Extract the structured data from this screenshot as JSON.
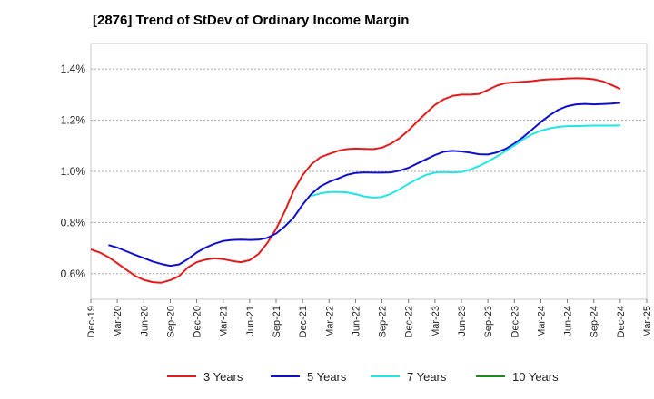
{
  "chart_data": {
    "type": "line",
    "title": "[2876]  Trend of StDev of Ordinary Income Margin",
    "xlabel": "",
    "ylabel": "",
    "ylim": [
      0.5,
      1.5
    ],
    "y_ticks": [
      0.6,
      0.8,
      1.0,
      1.2,
      1.4
    ],
    "y_tick_labels": [
      "0.6%",
      "0.8%",
      "1.0%",
      "1.2%",
      "1.4%"
    ],
    "grid": "horizontal dashed",
    "legend_position": "bottom",
    "x_tick_labels": [
      "Dec-19",
      "Mar-20",
      "Jun-20",
      "Sep-20",
      "Dec-20",
      "Mar-21",
      "Jun-21",
      "Sep-21",
      "Dec-21",
      "Mar-22",
      "Jun-22",
      "Sep-22",
      "Dec-22",
      "Mar-23",
      "Jun-23",
      "Sep-23",
      "Dec-23",
      "Mar-24",
      "Jun-24",
      "Sep-24",
      "Dec-24",
      "Mar-25"
    ],
    "series": [
      {
        "name": "3 Years",
        "color": "#e31a1c",
        "values": [
          0.695,
          0.683,
          0.665,
          0.641,
          0.616,
          0.592,
          0.576,
          0.567,
          0.565,
          0.575,
          0.59,
          0.625,
          0.645,
          0.655,
          0.66,
          0.657,
          0.65,
          0.645,
          0.653,
          0.677,
          0.72,
          0.775,
          0.845,
          0.925,
          0.985,
          1.028,
          1.055,
          1.068,
          1.08,
          1.087,
          1.089,
          1.088,
          1.087,
          1.093,
          1.108,
          1.13,
          1.16,
          1.195,
          1.228,
          1.26,
          1.282,
          1.295,
          1.3,
          1.3,
          1.303,
          1.318,
          1.335,
          1.345,
          1.348,
          1.35,
          1.353,
          1.357,
          1.36,
          1.361,
          1.363,
          1.364,
          1.363,
          1.36,
          1.352,
          1.338,
          1.322
        ]
      },
      {
        "name": "5 Years",
        "color": "#1010cc",
        "values": [
          null,
          null,
          0.712,
          0.702,
          0.688,
          0.674,
          0.661,
          0.648,
          0.638,
          0.631,
          0.636,
          0.657,
          0.683,
          0.702,
          0.717,
          0.728,
          0.732,
          0.733,
          0.732,
          0.733,
          0.74,
          0.757,
          0.785,
          0.82,
          0.87,
          0.912,
          0.941,
          0.959,
          0.972,
          0.986,
          0.994,
          0.996,
          0.995,
          0.995,
          0.996,
          1.003,
          1.014,
          1.031,
          1.047,
          1.064,
          1.077,
          1.08,
          1.078,
          1.073,
          1.067,
          1.066,
          1.074,
          1.088,
          1.109,
          1.134,
          1.163,
          1.193,
          1.219,
          1.241,
          1.255,
          1.262,
          1.264,
          1.262,
          1.263,
          1.265,
          1.268
        ]
      },
      {
        "name": "7 Years",
        "color": "#22e5e5",
        "values": [
          null,
          null,
          null,
          null,
          null,
          null,
          null,
          null,
          null,
          null,
          null,
          null,
          null,
          null,
          null,
          null,
          null,
          null,
          null,
          null,
          null,
          null,
          null,
          null,
          null,
          0.904,
          0.914,
          0.919,
          0.92,
          0.918,
          0.911,
          0.902,
          0.897,
          0.9,
          0.912,
          0.93,
          0.951,
          0.97,
          0.986,
          0.995,
          0.997,
          0.996,
          0.998,
          1.007,
          1.021,
          1.038,
          1.058,
          1.079,
          1.102,
          1.125,
          1.145,
          1.159,
          1.168,
          1.174,
          1.177,
          1.177,
          1.178,
          1.179,
          1.179,
          1.179,
          1.18
        ]
      },
      {
        "name": "10 Years",
        "color": "#1a8a1a",
        "values": []
      }
    ]
  }
}
